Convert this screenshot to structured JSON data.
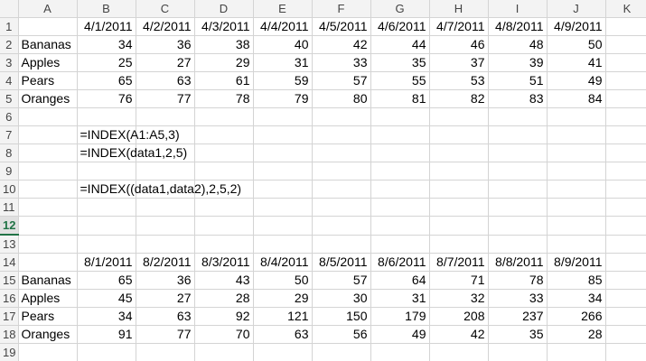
{
  "columns": [
    "A",
    "B",
    "C",
    "D",
    "E",
    "F",
    "G",
    "H",
    "I",
    "J",
    "K"
  ],
  "rows": [
    {
      "num": "1",
      "cells": [
        "",
        "4/1/2011",
        "4/2/2011",
        "4/3/2011",
        "4/4/2011",
        "4/5/2011",
        "4/6/2011",
        "4/7/2011",
        "4/8/2011",
        "4/9/2011",
        ""
      ]
    },
    {
      "num": "2",
      "cells": [
        "Bananas",
        "34",
        "36",
        "38",
        "40",
        "42",
        "44",
        "46",
        "48",
        "50",
        ""
      ]
    },
    {
      "num": "3",
      "cells": [
        "Apples",
        "25",
        "27",
        "29",
        "31",
        "33",
        "35",
        "37",
        "39",
        "41",
        ""
      ]
    },
    {
      "num": "4",
      "cells": [
        "Pears",
        "65",
        "63",
        "61",
        "59",
        "57",
        "55",
        "53",
        "51",
        "49",
        ""
      ]
    },
    {
      "num": "5",
      "cells": [
        "Oranges",
        "76",
        "77",
        "78",
        "79",
        "80",
        "81",
        "82",
        "83",
        "84",
        ""
      ]
    },
    {
      "num": "6",
      "cells": [
        "",
        "",
        "",
        "",
        "",
        "",
        "",
        "",
        "",
        "",
        ""
      ]
    },
    {
      "num": "7",
      "cells": [
        "",
        "=INDEX(A1:A5,3)",
        "",
        "",
        "",
        "",
        "",
        "",
        "",
        "",
        ""
      ]
    },
    {
      "num": "8",
      "cells": [
        "",
        "=INDEX(data1,2,5)",
        "",
        "",
        "",
        "",
        "",
        "",
        "",
        "",
        ""
      ]
    },
    {
      "num": "9",
      "cells": [
        "",
        "",
        "",
        "",
        "",
        "",
        "",
        "",
        "",
        "",
        ""
      ]
    },
    {
      "num": "10",
      "cells": [
        "",
        "=INDEX((data1,data2),2,5,2)",
        "",
        "",
        "",
        "",
        "",
        "",
        "",
        "",
        ""
      ]
    },
    {
      "num": "11",
      "cells": [
        "",
        "",
        "",
        "",
        "",
        "",
        "",
        "",
        "",
        "",
        ""
      ]
    },
    {
      "num": "12",
      "cells": [
        "",
        "",
        "",
        "",
        "",
        "",
        "",
        "",
        "",
        "",
        ""
      ]
    },
    {
      "num": "13",
      "cells": [
        "",
        "",
        "",
        "",
        "",
        "",
        "",
        "",
        "",
        "",
        ""
      ]
    },
    {
      "num": "14",
      "cells": [
        "",
        "8/1/2011",
        "8/2/2011",
        "8/3/2011",
        "8/4/2011",
        "8/5/2011",
        "8/6/2011",
        "8/7/2011",
        "8/8/2011",
        "8/9/2011",
        ""
      ]
    },
    {
      "num": "15",
      "cells": [
        "Bananas",
        "65",
        "36",
        "43",
        "50",
        "57",
        "64",
        "71",
        "78",
        "85",
        ""
      ]
    },
    {
      "num": "16",
      "cells": [
        "Apples",
        "45",
        "27",
        "28",
        "29",
        "30",
        "31",
        "32",
        "33",
        "34",
        ""
      ]
    },
    {
      "num": "17",
      "cells": [
        "Pears",
        "34",
        "63",
        "92",
        "121",
        "150",
        "179",
        "208",
        "237",
        "266",
        ""
      ]
    },
    {
      "num": "18",
      "cells": [
        "Oranges",
        "91",
        "77",
        "70",
        "63",
        "56",
        "49",
        "42",
        "35",
        "28",
        ""
      ]
    },
    {
      "num": "19",
      "cells": [
        "",
        "",
        "",
        "",
        "",
        "",
        "",
        "",
        "",
        "",
        ""
      ]
    }
  ],
  "active_row": "12",
  "colors": {
    "header_bg": "#f3f3f3",
    "gridline": "#d4d4d4",
    "active": "#217346"
  }
}
